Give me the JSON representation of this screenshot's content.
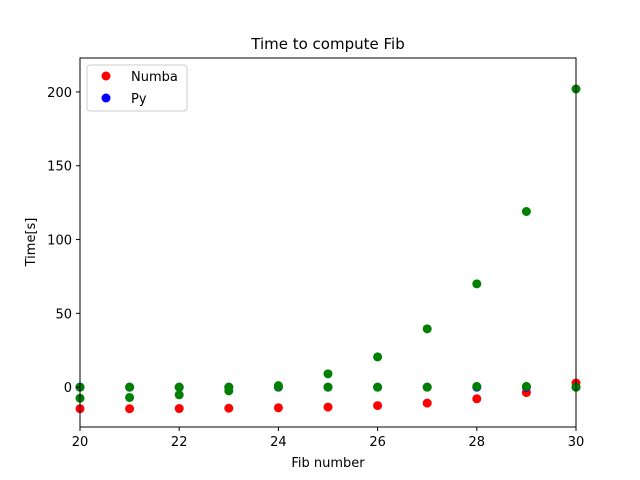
{
  "chart_data": {
    "type": "scatter",
    "title": "Time to compute Fib",
    "xlabel": "Fib number",
    "ylabel": "Time[s]",
    "xlim": [
      20,
      30
    ],
    "ylim": [
      -27,
      223
    ],
    "xticks": [
      20,
      22,
      24,
      26,
      28,
      30
    ],
    "yticks": [
      0,
      50,
      100,
      150,
      200
    ],
    "grid": false,
    "legend_position": "top-left",
    "legend": [
      {
        "label": "Numba",
        "color": "#ff0000"
      },
      {
        "label": "Py",
        "color": "#0000ff"
      }
    ],
    "series": [
      {
        "name": "Numba",
        "color": "#ff0000",
        "x": [
          20,
          21,
          22,
          23,
          24,
          25,
          26,
          27,
          28,
          29,
          30
        ],
        "y": [
          -14.6,
          -14.6,
          -14.5,
          -14.3,
          -14.0,
          -13.5,
          -12.5,
          -10.8,
          -7.9,
          -3.7,
          2.8
        ]
      },
      {
        "name": "Py",
        "color": "#0000ff",
        "x": [
          20,
          21,
          22,
          23,
          24,
          25,
          26,
          27,
          28,
          29,
          30
        ],
        "y": [
          0.0,
          0.0,
          0.0,
          0.0,
          0.0,
          0.0,
          0.0,
          0.0,
          0.0,
          0.0,
          0.0
        ]
      },
      {
        "color": "#008000",
        "x": [
          20,
          21,
          22,
          23,
          24,
          25,
          26,
          27,
          28,
          29,
          30
        ],
        "y": [
          0.0,
          0.0,
          0.0,
          0.0,
          1.0,
          0.0,
          0.0,
          0.0,
          0.5,
          0.5,
          0.0
        ]
      },
      {
        "color": "#008000",
        "x": [
          20,
          21,
          22,
          23,
          24,
          25,
          26,
          27,
          28,
          29,
          30
        ],
        "y": [
          -7.5,
          -7.0,
          -5.2,
          -2.5,
          0.2,
          9.0,
          20.5,
          39.5,
          70.0,
          119.0,
          202.0
        ]
      }
    ]
  }
}
